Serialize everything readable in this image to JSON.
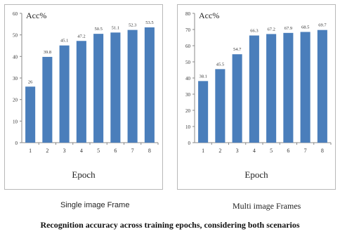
{
  "chart_data": [
    {
      "type": "bar",
      "title": "",
      "metric_label": "Acc%",
      "xlabel": "Epoch",
      "ylabel": "",
      "caption": "Single image Frame",
      "categories": [
        "1",
        "2",
        "3",
        "4",
        "5",
        "6",
        "7",
        "8"
      ],
      "values": [
        26,
        39.8,
        45.1,
        47.2,
        50.5,
        51.1,
        52.3,
        53.5
      ],
      "value_labels": [
        "26",
        "39.8",
        "45.1",
        "47.2",
        "50.5",
        "51.1",
        "52.3",
        "53.5"
      ],
      "ylim": [
        0,
        60
      ],
      "yticks": [
        "0",
        "10",
        "20",
        "30",
        "40",
        "50",
        "60"
      ],
      "bar_color": "#4a7ebb",
      "grid": false,
      "legend": "none"
    },
    {
      "type": "bar",
      "title": "",
      "metric_label": "Acc%",
      "xlabel": "Epoch",
      "ylabel": "",
      "caption": "Multi image Frames",
      "categories": [
        "1",
        "2",
        "3",
        "4",
        "5",
        "6",
        "7",
        "8"
      ],
      "values": [
        38.1,
        45.5,
        54.7,
        66.3,
        67.2,
        67.9,
        68.5,
        69.7
      ],
      "value_labels": [
        "38.1",
        "45.5",
        "54.7",
        "66.3",
        "67.2",
        "67.9",
        "68.5",
        "69.7"
      ],
      "ylim": [
        0,
        80
      ],
      "yticks": [
        "0",
        "10",
        "20",
        "30",
        "40",
        "50",
        "60",
        "70",
        "80"
      ],
      "bar_color": "#4a7ebb",
      "grid": false,
      "legend": "none"
    }
  ],
  "figure_caption": "Recognition accuracy across training epochs, considering both scenarios"
}
